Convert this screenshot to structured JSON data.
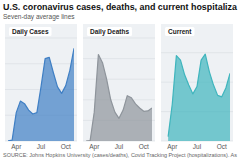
{
  "title": "U.S. coronavirus cases, deaths, and current hospitaliza",
  "subtitle": "Seven-day average lines",
  "source": "SOURCE: Johns Hopkins University (cases/deaths), Covid Tracking Project (hospitalizations). As",
  "chart_data": [
    {
      "type": "area",
      "title": "Daily Cases",
      "categories": [
        null,
        null,
        "Apr",
        null,
        null,
        null,
        null,
        null,
        "Jul",
        null,
        null,
        null,
        null,
        null,
        "Oct",
        null,
        null
      ],
      "values": [
        30,
        700,
        22000,
        31000,
        29000,
        24000,
        21000,
        22000,
        42000,
        64000,
        65000,
        53000,
        42000,
        37000,
        43000,
        55000,
        72000
      ],
      "color": "#3f7fc4",
      "ylim": [
        0,
        80000
      ],
      "yticks": [
        0,
        20000,
        40000,
        60000,
        80000
      ],
      "grid": true,
      "tick_labels": "x"
    },
    {
      "type": "area",
      "title": "Daily Deaths",
      "categories": [
        null,
        null,
        "Apr",
        null,
        null,
        null,
        null,
        null,
        "Jul",
        null,
        null,
        null,
        null,
        null,
        "Oct",
        null,
        null
      ],
      "values": [
        0,
        10,
        700,
        2100,
        1900,
        1500,
        1000,
        700,
        550,
        750,
        1100,
        1050,
        900,
        800,
        720,
        730,
        800
      ],
      "color": "#8e949b",
      "ylim": [
        0,
        2500
      ],
      "yticks": [
        0,
        500,
        1000,
        1500,
        2000,
        2500
      ],
      "grid": true,
      "tick_labels": "x"
    },
    {
      "type": "area",
      "title": "Current",
      "categories": [
        null,
        null,
        "Apr",
        null,
        null,
        null,
        null,
        null,
        "Jul",
        null,
        null,
        null,
        null,
        null,
        "Oct",
        null,
        null
      ],
      "values": [
        null,
        3000,
        25000,
        58000,
        55000,
        45000,
        38000,
        32000,
        37000,
        55000,
        59000,
        47000,
        38000,
        31000,
        30000,
        36000,
        46000
      ],
      "color": "#3fb5bd",
      "ylim": [
        0,
        70000
      ],
      "yticks": [
        0,
        20000,
        40000,
        60000
      ],
      "grid": true,
      "tick_labels": "x"
    }
  ]
}
